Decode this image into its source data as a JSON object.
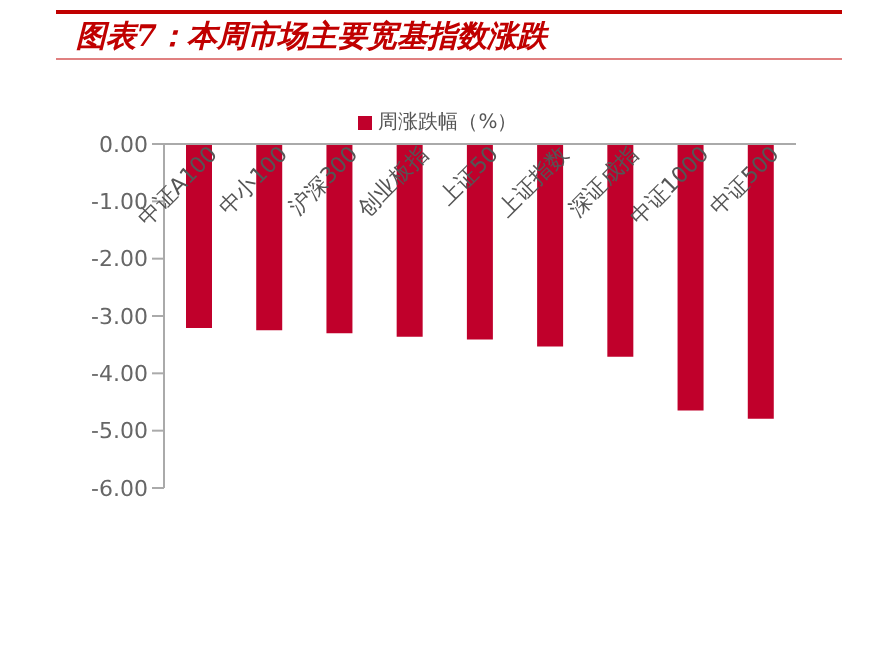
{
  "chart_data": {
    "type": "bar",
    "title": "图表7：本周市场主要宽基指数涨跌",
    "categories": [
      "中证A100",
      "中小100",
      "沪深300",
      "创业板指",
      "上证50",
      "上证指数",
      "深证成指",
      "中证1000",
      "中证500"
    ],
    "series": [
      {
        "name": "周涨跌幅（%）",
        "color": "#c0002b",
        "values": [
          -3.21,
          -3.25,
          -3.3,
          -3.36,
          -3.41,
          -3.53,
          -3.71,
          -4.65,
          -4.79
        ]
      }
    ],
    "ylim": [
      -6,
      0
    ],
    "yticks": [
      {
        "value": 0,
        "label": "0.00"
      },
      {
        "value": -1,
        "label": "-1.00"
      },
      {
        "value": -2,
        "label": "-2.00"
      },
      {
        "value": -3,
        "label": "-3.00"
      },
      {
        "value": -4,
        "label": "-4.00"
      },
      {
        "value": -5,
        "label": "-5.00"
      },
      {
        "value": -6,
        "label": "-6.00"
      }
    ],
    "grid": false,
    "legend": "top"
  }
}
